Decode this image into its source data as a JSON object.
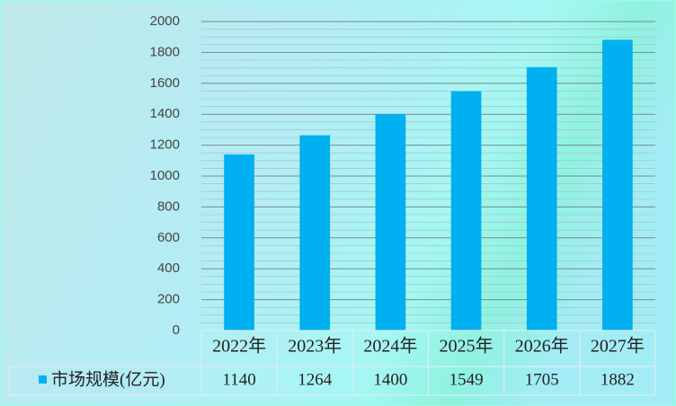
{
  "chart_data": {
    "type": "bar",
    "categories": [
      "2022年",
      "2023年",
      "2024年",
      "2025年",
      "2026年",
      "2027年"
    ],
    "series": [
      {
        "name": "市场规模(亿元)",
        "color": "#00b0f0",
        "values": [
          1140,
          1264,
          1400,
          1549,
          1705,
          1882
        ]
      }
    ],
    "ylim": [
      0,
      2000
    ],
    "yticks": [
      0,
      200,
      400,
      600,
      800,
      1000,
      1200,
      1400,
      1600,
      1800,
      2000
    ],
    "grid": true
  }
}
